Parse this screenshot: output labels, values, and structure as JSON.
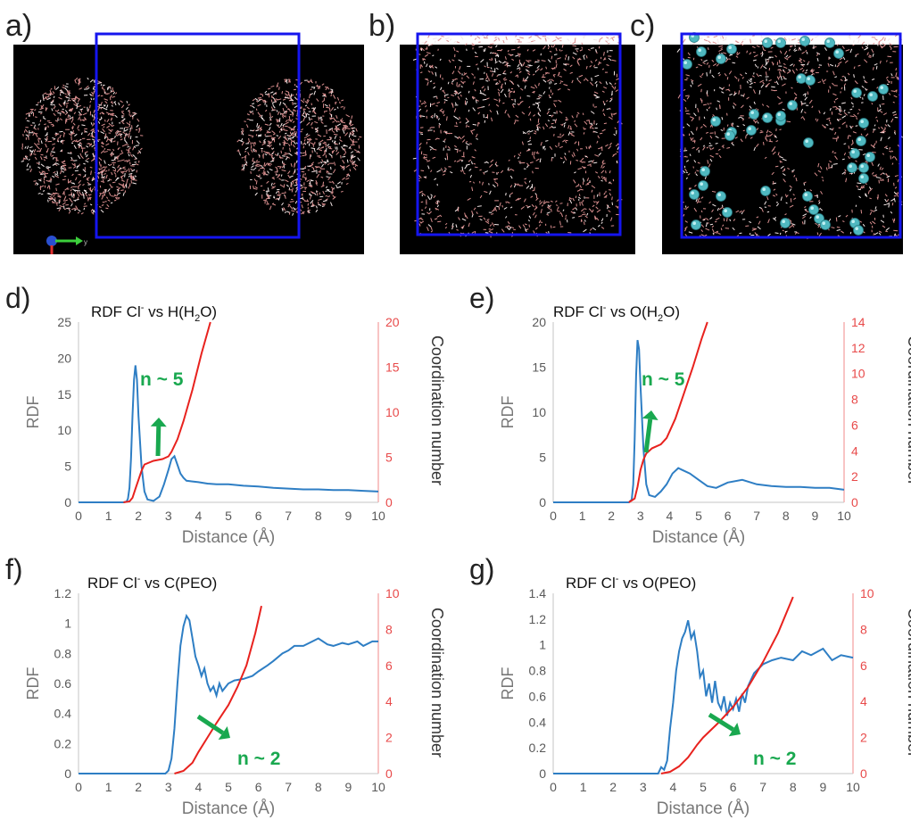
{
  "panels": [
    {
      "label": "a)",
      "type": "snapshot"
    },
    {
      "label": "b)",
      "type": "snapshot"
    },
    {
      "label": "c)",
      "type": "snapshot"
    }
  ],
  "axis_glyph_label": "y",
  "colors": {
    "rdf": "#2e7ec4",
    "coord": "#e8221e",
    "box": "#1515ee",
    "water": "#d98e8e",
    "ion": "#4fb8c0",
    "annot": "#19a84f",
    "axis_right": "#e84a4a",
    "axis_left": "#9a9a9a"
  },
  "chart_data": [
    {
      "panel_label": "d)",
      "type": "line",
      "title_pre": "RDF Cl",
      "title_sup": "-",
      "title_mid": " vs H(H",
      "title_sub": "2",
      "title_post": "O)",
      "xlabel": "Distance (Å)",
      "ylabel": "RDF",
      "ylabel2": "Coordination number",
      "xlim": [
        0,
        10
      ],
      "ylim": [
        0,
        25
      ],
      "y2lim": [
        0,
        20
      ],
      "xticks": [
        "0",
        "1",
        "2",
        "3",
        "4",
        "5",
        "6",
        "7",
        "8",
        "9",
        "10"
      ],
      "yticks": [
        "0",
        "5",
        "10",
        "15",
        "20",
        "25"
      ],
      "y2ticks": [
        "0",
        "5",
        "10",
        "15",
        "20"
      ],
      "annotation": "n ~ 5",
      "arrow_dir": "up",
      "series": [
        {
          "axis": "left",
          "x": [
            0,
            1.5,
            1.6,
            1.65,
            1.7,
            1.75,
            1.8,
            1.85,
            1.9,
            1.95,
            2.0,
            2.1,
            2.2,
            2.3,
            2.5,
            2.7,
            2.85,
            3.0,
            3.1,
            3.2,
            3.3,
            3.4,
            3.5,
            3.6,
            3.8,
            4.0,
            4.3,
            4.6,
            5.0,
            5.5,
            6.0,
            6.5,
            7.0,
            7.5,
            8.0,
            8.5,
            9.0,
            9.5,
            10
          ],
          "y": [
            0,
            0,
            0.1,
            0.5,
            2,
            6,
            12,
            17,
            19,
            17,
            12,
            5,
            1.5,
            0.4,
            0.2,
            0.8,
            2.5,
            4.5,
            6,
            6.4,
            5.2,
            4,
            3.4,
            3.0,
            2.9,
            2.8,
            2.6,
            2.5,
            2.5,
            2.3,
            2.2,
            2.0,
            1.9,
            1.8,
            1.8,
            1.7,
            1.7,
            1.6,
            1.5
          ]
        },
        {
          "axis": "right",
          "x": [
            1.5,
            1.7,
            1.8,
            1.9,
            2.0,
            2.1,
            2.2,
            2.5,
            2.8,
            3.0,
            3.1,
            3.3,
            3.5,
            3.8,
            4.1,
            4.4
          ],
          "y": [
            0,
            0.1,
            0.5,
            1.5,
            2.5,
            3.5,
            4.2,
            4.6,
            4.8,
            5.1,
            5.6,
            7,
            9,
            12.5,
            16.5,
            20
          ]
        }
      ]
    },
    {
      "panel_label": "e)",
      "type": "line",
      "title_pre": "RDF Cl",
      "title_sup": "-",
      "title_mid": " vs O(H",
      "title_sub": "2",
      "title_post": "O)",
      "xlabel": "Distance (Å)",
      "ylabel": "RDF",
      "ylabel2": "Coordination number",
      "xlim": [
        0,
        10
      ],
      "ylim": [
        0,
        20
      ],
      "y2lim": [
        0,
        14
      ],
      "xticks": [
        "0",
        "1",
        "2",
        "3",
        "4",
        "5",
        "6",
        "7",
        "8",
        "9",
        "10"
      ],
      "yticks": [
        "0",
        "5",
        "10",
        "15",
        "20"
      ],
      "y2ticks": [
        "0",
        "2",
        "4",
        "6",
        "8",
        "10",
        "12",
        "14"
      ],
      "annotation": "n ~ 5",
      "arrow_dir": "up",
      "series": [
        {
          "axis": "left",
          "x": [
            0,
            2.6,
            2.7,
            2.75,
            2.8,
            2.85,
            2.9,
            2.95,
            3.0,
            3.1,
            3.2,
            3.3,
            3.5,
            3.7,
            3.9,
            4.1,
            4.3,
            4.5,
            4.7,
            5.0,
            5.3,
            5.6,
            6.0,
            6.5,
            7.0,
            7.5,
            8.0,
            8.5,
            9.0,
            9.5,
            10
          ],
          "y": [
            0,
            0,
            0.3,
            2,
            7,
            14,
            18,
            17,
            13,
            6,
            2,
            0.8,
            0.6,
            1.2,
            2,
            3.2,
            3.8,
            3.5,
            3.2,
            2.5,
            1.8,
            1.6,
            2.2,
            2.5,
            2.0,
            1.8,
            1.7,
            1.7,
            1.6,
            1.6,
            1.4
          ]
        },
        {
          "axis": "right",
          "x": [
            2.6,
            2.8,
            2.9,
            3.0,
            3.1,
            3.2,
            3.4,
            3.7,
            3.9,
            4.2,
            4.5,
            4.8,
            5.1,
            5.3
          ],
          "y": [
            0,
            0.3,
            1.2,
            2.5,
            3.3,
            3.8,
            4.2,
            4.5,
            5.0,
            6.5,
            8.5,
            10.5,
            12.7,
            14
          ]
        }
      ]
    },
    {
      "panel_label": "f)",
      "type": "line",
      "title_pre": "RDF Cl",
      "title_sup": "-",
      "title_mid": " vs C(PEO)",
      "title_sub": "",
      "title_post": "",
      "xlabel": "Distance (Å)",
      "ylabel": "RDF",
      "ylabel2": "Coordination number",
      "xlim": [
        0,
        10
      ],
      "ylim": [
        0,
        1.2
      ],
      "y2lim": [
        0,
        10
      ],
      "xticks": [
        "0",
        "1",
        "2",
        "3",
        "4",
        "5",
        "6",
        "7",
        "8",
        "9",
        "10"
      ],
      "yticks": [
        "0",
        "0.2",
        "0.4",
        "0.6",
        "0.8",
        "1",
        "1.2"
      ],
      "y2ticks": [
        "0",
        "2",
        "4",
        "6",
        "8",
        "10"
      ],
      "annotation": "n ~ 2",
      "arrow_dir": "down",
      "series": [
        {
          "axis": "left",
          "x": [
            0,
            2.9,
            3.0,
            3.1,
            3.2,
            3.3,
            3.4,
            3.5,
            3.6,
            3.7,
            3.8,
            3.9,
            4.0,
            4.1,
            4.2,
            4.3,
            4.4,
            4.5,
            4.6,
            4.7,
            4.8,
            5.0,
            5.2,
            5.5,
            5.8,
            6.0,
            6.3,
            6.5,
            6.8,
            7.0,
            7.2,
            7.5,
            7.8,
            8.0,
            8.3,
            8.5,
            8.8,
            9.0,
            9.3,
            9.5,
            9.8,
            10
          ],
          "y": [
            0,
            0,
            0.02,
            0.1,
            0.3,
            0.6,
            0.85,
            0.98,
            1.05,
            1.02,
            0.9,
            0.78,
            0.72,
            0.65,
            0.7,
            0.6,
            0.55,
            0.58,
            0.52,
            0.6,
            0.55,
            0.6,
            0.62,
            0.63,
            0.65,
            0.68,
            0.72,
            0.75,
            0.8,
            0.82,
            0.85,
            0.85,
            0.88,
            0.9,
            0.86,
            0.85,
            0.87,
            0.86,
            0.88,
            0.85,
            0.88,
            0.88
          ]
        },
        {
          "axis": "right",
          "x": [
            3.2,
            3.5,
            3.8,
            4.0,
            4.3,
            4.6,
            5.0,
            5.3,
            5.6,
            5.9,
            6.1
          ],
          "y": [
            0,
            0.15,
            0.6,
            1.2,
            2.0,
            2.8,
            3.8,
            4.8,
            6.0,
            7.8,
            9.3
          ]
        }
      ]
    },
    {
      "panel_label": "g)",
      "type": "line",
      "title_pre": "RDF Cl",
      "title_sup": "-",
      "title_mid": " vs O(PEO)",
      "title_sub": "",
      "title_post": "",
      "xlabel": "Distance (Å)",
      "ylabel": "RDF",
      "ylabel2": "Coordination number",
      "xlim": [
        0,
        10
      ],
      "ylim": [
        0,
        1.4
      ],
      "y2lim": [
        0,
        10
      ],
      "xticks": [
        "0",
        "1",
        "2",
        "3",
        "4",
        "5",
        "6",
        "7",
        "8",
        "9",
        "10"
      ],
      "yticks": [
        "0",
        "0.2",
        "0.4",
        "0.6",
        "0.8",
        "1",
        "1.2",
        "1.4"
      ],
      "y2ticks": [
        "0",
        "2",
        "4",
        "6",
        "8",
        "10"
      ],
      "annotation": "n ~ 2",
      "arrow_dir": "down",
      "series": [
        {
          "axis": "left",
          "x": [
            0,
            3.5,
            3.6,
            3.7,
            3.8,
            3.9,
            4.0,
            4.1,
            4.2,
            4.3,
            4.4,
            4.5,
            4.6,
            4.7,
            4.8,
            4.9,
            5.0,
            5.1,
            5.2,
            5.3,
            5.4,
            5.5,
            5.6,
            5.7,
            5.8,
            5.9,
            6.0,
            6.1,
            6.2,
            6.3,
            6.4,
            6.5,
            6.7,
            7.0,
            7.3,
            7.6,
            8.0,
            8.3,
            8.6,
            9.0,
            9.3,
            9.6,
            10
          ],
          "y": [
            0,
            0,
            0.05,
            0.03,
            0.1,
            0.35,
            0.55,
            0.8,
            0.95,
            1.05,
            1.1,
            1.19,
            1.05,
            1.1,
            0.95,
            0.75,
            0.8,
            0.6,
            0.7,
            0.55,
            0.72,
            0.55,
            0.5,
            0.6,
            0.45,
            0.55,
            0.5,
            0.58,
            0.48,
            0.62,
            0.55,
            0.68,
            0.78,
            0.85,
            0.88,
            0.9,
            0.88,
            0.95,
            0.92,
            0.97,
            0.88,
            0.92,
            0.9
          ]
        },
        {
          "axis": "right",
          "x": [
            3.6,
            3.9,
            4.2,
            4.5,
            4.8,
            5.0,
            5.5,
            6.0,
            6.5,
            7.0,
            7.5,
            8.0
          ],
          "y": [
            0,
            0.1,
            0.4,
            0.9,
            1.6,
            2.0,
            2.8,
            3.7,
            4.8,
            6.2,
            7.8,
            9.8
          ]
        }
      ]
    }
  ]
}
